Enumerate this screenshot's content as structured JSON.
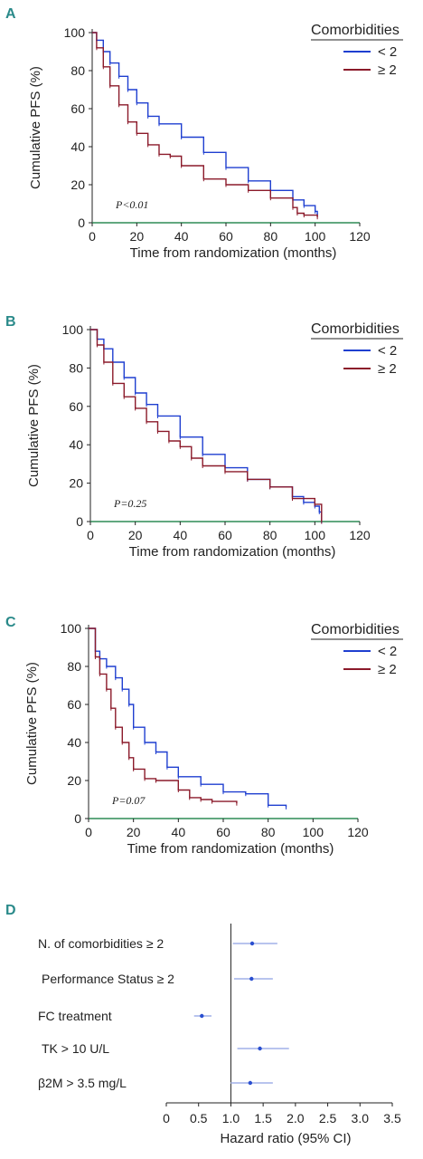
{
  "colors": {
    "lt2": "#1f3fd0",
    "ge2": "#8b1a2a",
    "forest": "#2a4fd0",
    "forest_light": "#b8c4ee",
    "axis_x": "#2e8b57",
    "letter": "#2a8a8a"
  },
  "chart_data": [
    {
      "panel": "A",
      "type": "line",
      "legend_title": "Comorbidities",
      "legend_position": "top-right",
      "xlabel": "Time from randomization (months)",
      "ylabel": "Cumulative PFS (%)",
      "xlim": [
        0,
        120
      ],
      "ylim": [
        0,
        100
      ],
      "xticks": [
        "0",
        "20",
        "40",
        "60",
        "80",
        "100",
        "120"
      ],
      "yticks": [
        "0",
        "20",
        "40",
        "60",
        "80",
        "100"
      ],
      "annotation": "P<0.01",
      "series": [
        {
          "name": "< 2",
          "x": [
            0,
            2,
            5,
            8,
            12,
            16,
            20,
            25,
            30,
            40,
            50,
            60,
            70,
            80,
            90,
            95,
            100,
            101
          ],
          "y": [
            100,
            96,
            90,
            84,
            77,
            70,
            63,
            56,
            52,
            45,
            37,
            29,
            22,
            17,
            12,
            9,
            6,
            4
          ]
        },
        {
          "name": "≥ 2",
          "x": [
            0,
            2,
            5,
            8,
            12,
            16,
            20,
            25,
            30,
            35,
            40,
            50,
            60,
            70,
            80,
            90,
            92,
            95,
            101
          ],
          "y": [
            100,
            92,
            82,
            72,
            62,
            53,
            47,
            41,
            36,
            35,
            30,
            23,
            20,
            17,
            13,
            8,
            5,
            4,
            3
          ]
        }
      ]
    },
    {
      "panel": "B",
      "type": "line",
      "legend_title": "Comorbidities",
      "legend_position": "top-right",
      "xlabel": "Time from randomization (months)",
      "ylabel": "Cumulative PFS (%)",
      "xlim": [
        0,
        120
      ],
      "ylim": [
        0,
        100
      ],
      "xticks": [
        "0",
        "20",
        "40",
        "60",
        "80",
        "100",
        "120"
      ],
      "yticks": [
        "0",
        "20",
        "40",
        "60",
        "80",
        "100"
      ],
      "annotation": "P=0.25",
      "series": [
        {
          "name": "< 2",
          "x": [
            0,
            3,
            6,
            10,
            15,
            20,
            25,
            30,
            40,
            50,
            60,
            70,
            80,
            90,
            95,
            100,
            102,
            103
          ],
          "y": [
            100,
            95,
            90,
            83,
            75,
            67,
            61,
            55,
            44,
            35,
            28,
            22,
            18,
            13,
            10,
            8,
            5,
            0
          ]
        },
        {
          "name": "≥ 2",
          "x": [
            0,
            3,
            6,
            10,
            15,
            20,
            25,
            30,
            35,
            40,
            45,
            50,
            60,
            70,
            80,
            90,
            100,
            103
          ],
          "y": [
            100,
            92,
            83,
            72,
            65,
            59,
            52,
            47,
            42,
            39,
            33,
            29,
            26,
            22,
            18,
            12,
            9,
            0
          ]
        }
      ]
    },
    {
      "panel": "C",
      "type": "line",
      "legend_title": "Comorbidities",
      "legend_position": "top-right",
      "xlabel": "Time from randomization (months)",
      "ylabel": "Cumulative PFS (%)",
      "xlim": [
        0,
        120
      ],
      "ylim": [
        0,
        100
      ],
      "xticks": [
        "0",
        "20",
        "40",
        "60",
        "80",
        "100",
        "120"
      ],
      "yticks": [
        "0",
        "20",
        "40",
        "60",
        "80",
        "100"
      ],
      "annotation": "P=0.07",
      "series": [
        {
          "name": "< 2",
          "x": [
            0,
            3,
            5,
            8,
            12,
            15,
            18,
            20,
            25,
            30,
            35,
            40,
            50,
            60,
            70,
            80,
            88
          ],
          "y": [
            100,
            88,
            84,
            80,
            74,
            68,
            60,
            48,
            40,
            35,
            27,
            22,
            18,
            14,
            13,
            7,
            6
          ]
        },
        {
          "name": "≥ 2",
          "x": [
            0,
            3,
            5,
            8,
            10,
            12,
            15,
            18,
            20,
            25,
            30,
            40,
            45,
            50,
            55,
            66
          ],
          "y": [
            100,
            85,
            76,
            68,
            58,
            48,
            40,
            32,
            26,
            21,
            20,
            15,
            11,
            10,
            9,
            8
          ]
        }
      ]
    },
    {
      "panel": "D",
      "type": "scatter",
      "xlabel": "Hazard ratio (95% CI)",
      "xlim": [
        0,
        3.5
      ],
      "xticks": [
        "0",
        "0.5",
        "1.0",
        "1.5",
        "2.0",
        "2.5",
        "3.0",
        "3.5"
      ],
      "reference_line": 1.0,
      "rows": [
        {
          "label": "N. of comorbidities ≥ 2",
          "hr": 1.33,
          "lo": 1.03,
          "hi": 1.72
        },
        {
          "label": "Performance Status ≥ 2",
          "hr": 1.32,
          "lo": 1.05,
          "hi": 1.65
        },
        {
          "label": "FC treatment",
          "hr": 0.55,
          "lo": 0.43,
          "hi": 0.7
        },
        {
          "label": "TK > 10 U/L",
          "hr": 1.45,
          "lo": 1.1,
          "hi": 1.9
        },
        {
          "label": "β2M > 3.5 mg/L",
          "hr": 1.3,
          "lo": 1.0,
          "hi": 1.65
        }
      ]
    }
  ]
}
